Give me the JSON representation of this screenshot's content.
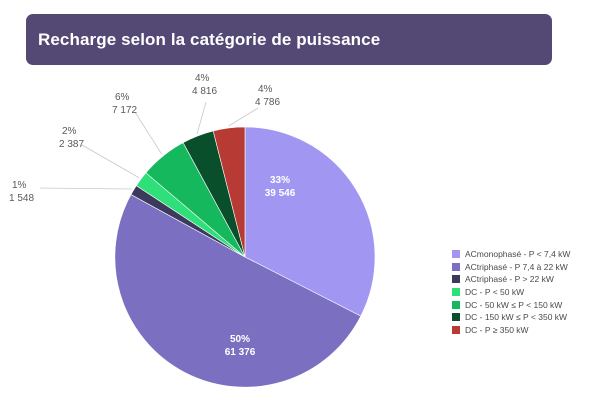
{
  "title": "Recharge selon la catégorie de puissance",
  "colors": {
    "title_bg": "#544874",
    "label_text": "#595959",
    "inside_label_text": "#ffffff",
    "leader_line": "#c8c8c8"
  },
  "chart_data": {
    "type": "pie",
    "title": "Recharge selon la catégorie de puissance",
    "legend_position": "right",
    "slices": [
      {
        "label": "ACmonophasé - P < 7,4 kW",
        "value": 39546,
        "percent": "33%",
        "value_text": "39 546",
        "color": "#a197f2"
      },
      {
        "label": "ACtriphasé - P 7,4 à 22 kW",
        "value": 61376,
        "percent": "50%",
        "value_text": "61 376",
        "color": "#7a6fc0"
      },
      {
        "label": "ACtriphasé - P > 22 kW",
        "value": 1548,
        "percent": "1%",
        "value_text": "1 548",
        "color": "#3c3a5c"
      },
      {
        "label": "DC - P < 50 kW",
        "value": 2387,
        "percent": "2%",
        "value_text": "2 387",
        "color": "#2fe07a"
      },
      {
        "label": "DC - 50 kW ≤ P < 150 kW",
        "value": 7172,
        "percent": "6%",
        "value_text": "7 172",
        "color": "#16b85e"
      },
      {
        "label": "DC - 150 kW  ≤ P < 350 kW",
        "value": 4816,
        "percent": "4%",
        "value_text": "4 816",
        "color": "#0a4f2c"
      },
      {
        "label": "DC - P ≥ 350 kW",
        "value": 4786,
        "percent": "4%",
        "value_text": "4 786",
        "color": "#b83a34"
      }
    ]
  }
}
